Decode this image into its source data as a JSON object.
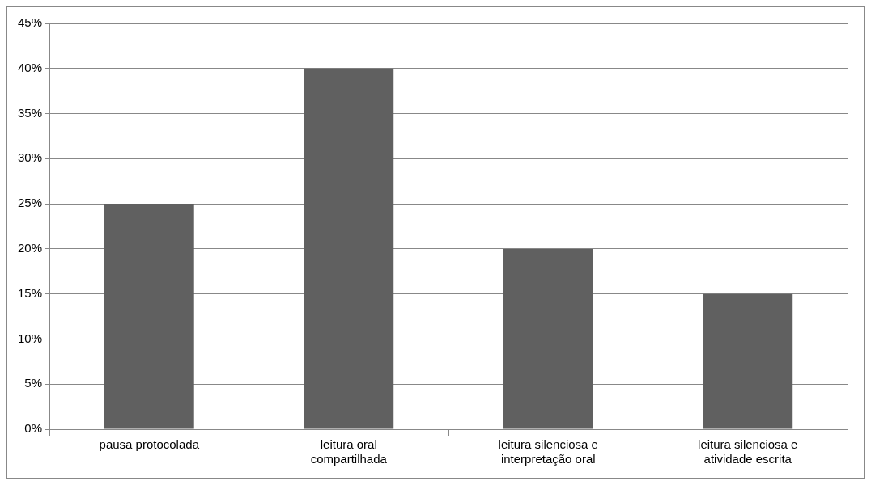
{
  "chart_data": {
    "type": "bar",
    "categories": [
      "pausa protocolada",
      "leitura oral compartilhada",
      "leitura silenciosa e interpretação oral",
      "leitura silenciosa e atividade escrita"
    ],
    "values": [
      25,
      40,
      20,
      15
    ],
    "color": "#606060",
    "ylim": [
      0,
      45
    ],
    "yticks": [
      {
        "value": 0,
        "label": "0%"
      },
      {
        "value": 5,
        "label": "5%"
      },
      {
        "value": 10,
        "label": "10%"
      },
      {
        "value": 15,
        "label": "15%"
      },
      {
        "value": 20,
        "label": "20%"
      },
      {
        "value": 25,
        "label": "25%"
      },
      {
        "value": 30,
        "label": "30%"
      },
      {
        "value": 35,
        "label": "35%"
      },
      {
        "value": 40,
        "label": "40%"
      },
      {
        "value": 45,
        "label": "45%"
      }
    ],
    "grid": "y"
  }
}
